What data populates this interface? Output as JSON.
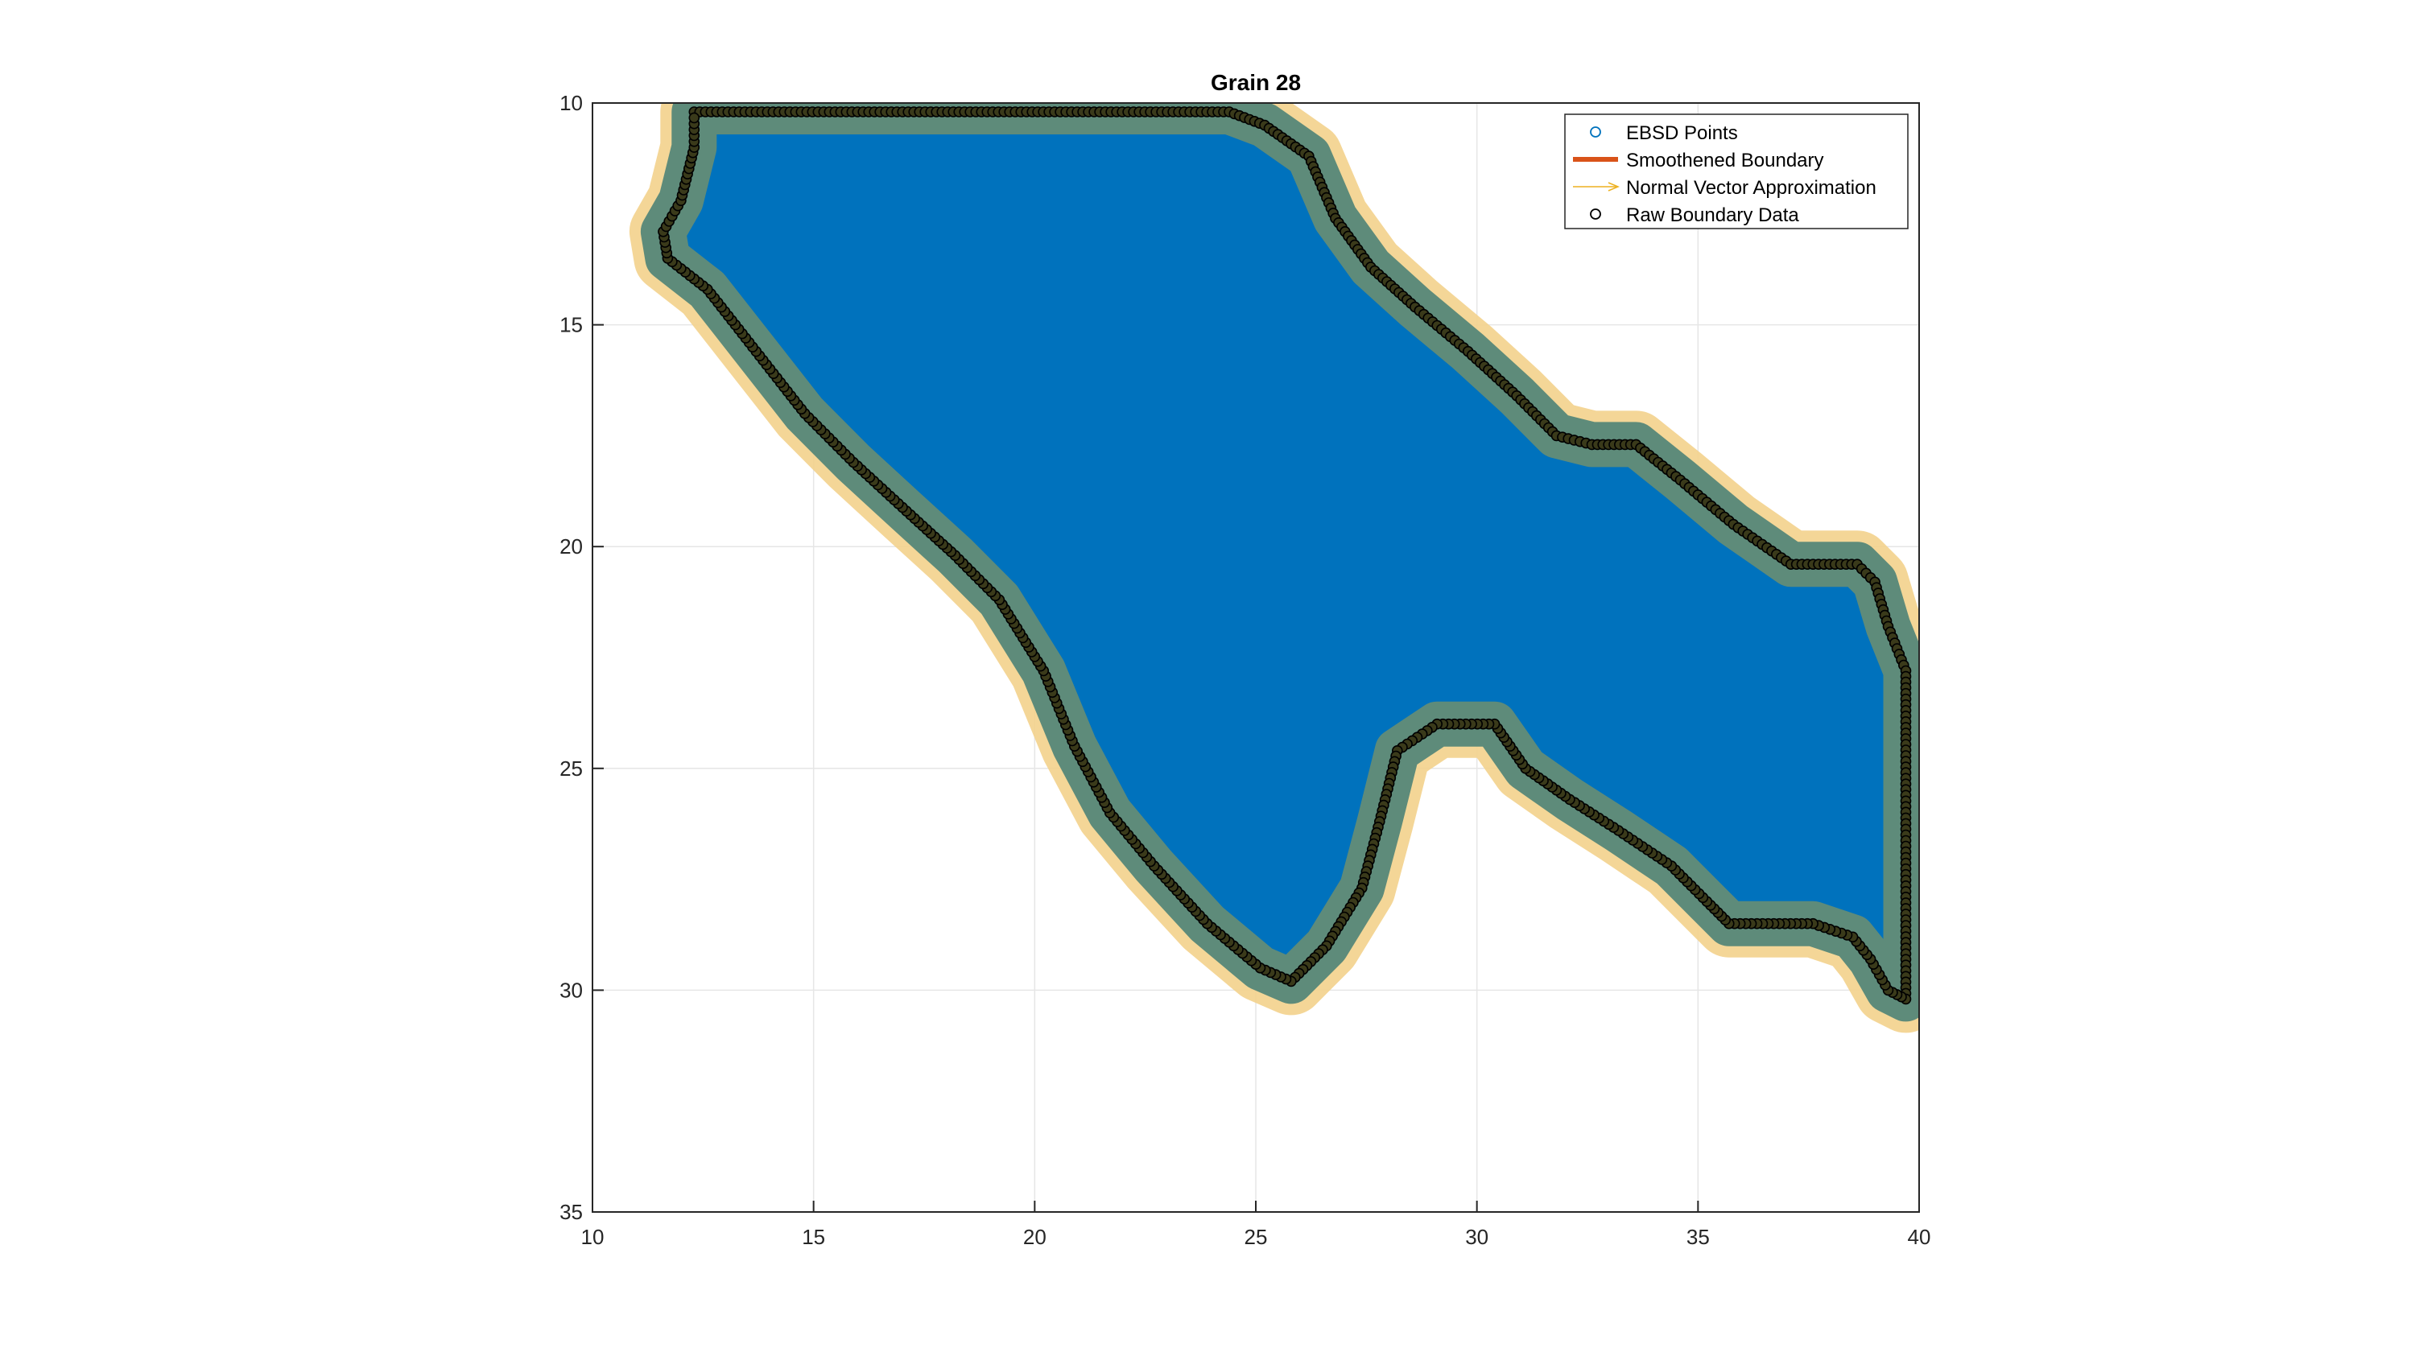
{
  "chart_data": {
    "type": "scatter",
    "title": "Grain 28",
    "xlabel": "",
    "ylabel": "",
    "xlim": [
      10,
      40
    ],
    "ylim": [
      10,
      35
    ],
    "y_reversed": true,
    "grid": true,
    "x_ticks": [
      10,
      15,
      20,
      25,
      30,
      35,
      40
    ],
    "y_ticks": [
      10,
      15,
      20,
      25,
      30,
      35
    ],
    "legend_position": "top-right",
    "legend": [
      {
        "label": "EBSD Points",
        "kind": "circle-marker",
        "color": "#0072BD"
      },
      {
        "label": "Smoothened Boundary",
        "kind": "thick-line",
        "color": "#D95319"
      },
      {
        "label": "Normal Vector Approximation",
        "kind": "arrow",
        "color": "#EDB120"
      },
      {
        "label": "Raw Boundary Data",
        "kind": "circle-marker",
        "color": "#000000"
      }
    ],
    "series": [
      {
        "name": "Raw Boundary Data",
        "color": "#000000",
        "points": [
          [
            12.3,
            10.2
          ],
          [
            24.4,
            10.2
          ],
          [
            25.2,
            10.5
          ],
          [
            26.2,
            11.2
          ],
          [
            26.8,
            12.6
          ],
          [
            27.6,
            13.7
          ],
          [
            28.6,
            14.6
          ],
          [
            29.8,
            15.6
          ],
          [
            30.9,
            16.6
          ],
          [
            31.8,
            17.5
          ],
          [
            32.6,
            17.7
          ],
          [
            33.6,
            17.7
          ],
          [
            34.6,
            18.5
          ],
          [
            35.8,
            19.5
          ],
          [
            37.1,
            20.4
          ],
          [
            38.6,
            20.4
          ],
          [
            39.0,
            20.8
          ],
          [
            39.3,
            21.8
          ],
          [
            39.7,
            22.8
          ],
          [
            39.7,
            30.2
          ],
          [
            39.3,
            30.0
          ],
          [
            38.9,
            29.3
          ],
          [
            38.5,
            28.8
          ],
          [
            37.6,
            28.5
          ],
          [
            35.7,
            28.5
          ],
          [
            35.2,
            28.0
          ],
          [
            34.4,
            27.2
          ],
          [
            33.2,
            26.4
          ],
          [
            32.1,
            25.7
          ],
          [
            31.1,
            25.0
          ],
          [
            30.4,
            24.0
          ],
          [
            29.1,
            24.0
          ],
          [
            28.2,
            24.6
          ],
          [
            27.8,
            26.2
          ],
          [
            27.4,
            27.7
          ],
          [
            26.6,
            29.0
          ],
          [
            25.8,
            29.8
          ],
          [
            25.1,
            29.5
          ],
          [
            23.9,
            28.5
          ],
          [
            22.7,
            27.2
          ],
          [
            21.7,
            26.0
          ],
          [
            20.9,
            24.5
          ],
          [
            20.2,
            22.8
          ],
          [
            19.2,
            21.2
          ],
          [
            18.2,
            20.2
          ],
          [
            17.1,
            19.2
          ],
          [
            15.9,
            18.1
          ],
          [
            14.8,
            17.0
          ],
          [
            13.7,
            15.6
          ],
          [
            12.6,
            14.2
          ],
          [
            11.7,
            13.5
          ],
          [
            11.6,
            12.9
          ],
          [
            12.0,
            12.2
          ],
          [
            12.3,
            11.0
          ],
          [
            12.3,
            10.2
          ]
        ]
      }
    ]
  }
}
